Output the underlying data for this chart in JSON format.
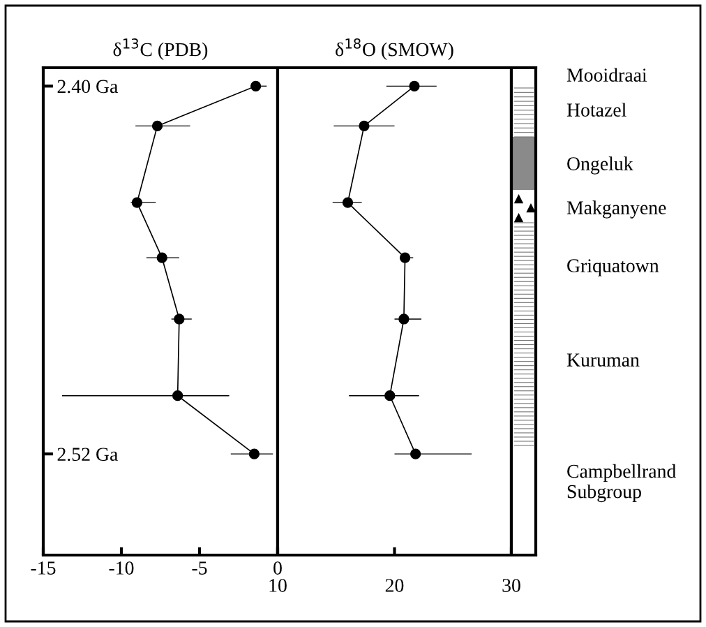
{
  "chart_data": [
    {
      "type": "line",
      "title": "δ$^{13}$C (PDB)",
      "marker": "circle",
      "line_style": "solid",
      "xlim": [
        -15,
        0
      ],
      "xticks": [
        -15,
        -10,
        -5,
        0
      ],
      "ylim": [
        2.553,
        2.394
      ],
      "yticks": [
        {
          "value": 2.4,
          "label": "2.40 Ga"
        },
        {
          "value": 2.52,
          "label": "2.52 Ga"
        }
      ],
      "series": [
        {
          "color": "#000000",
          "x": [
            -1.4,
            -7.7,
            -9.0,
            -7.4,
            -6.3,
            -6.4,
            -1.5
          ],
          "values": [
            2.4,
            2.413,
            2.438,
            2.456,
            2.476,
            2.501,
            2.52
          ],
          "xerrors": [
            [
              -1.6,
              -0.7
            ],
            [
              -9.1,
              -5.6
            ],
            [
              -9.4,
              -7.8
            ],
            [
              -8.4,
              -6.3
            ],
            [
              -6.8,
              -5.5
            ],
            [
              -13.8,
              -3.1
            ],
            [
              -3.0,
              -0.3
            ]
          ]
        }
      ]
    },
    {
      "type": "line",
      "title": "δ$^{18}$O (SMOW)",
      "marker": "circle",
      "line_style": "solid",
      "xlim": [
        10,
        30
      ],
      "xticks": [
        10,
        20,
        30
      ],
      "ylim": [
        2.553,
        2.394
      ],
      "tick_labels": "x",
      "series": [
        {
          "color": "#000000",
          "x": [
            21.7,
            17.4,
            16.0,
            20.9,
            20.8,
            19.6,
            21.8
          ],
          "values": [
            2.4,
            2.413,
            2.438,
            2.456,
            2.476,
            2.501,
            2.52
          ],
          "xerrors": [
            [
              19.3,
              23.6
            ],
            [
              14.8,
              20.0
            ],
            [
              14.7,
              17.2
            ],
            [
              20.6,
              21.6
            ],
            [
              20.0,
              22.3
            ],
            [
              16.1,
              22.1
            ],
            [
              20.0,
              26.6
            ]
          ]
        }
      ],
      "annotations": [
        "Mooidraai",
        "Hotazel",
        "Ongeluk",
        "Makganyene",
        "Griquatown",
        "Kuruman",
        "Campbellrand\nSubgroup"
      ]
    }
  ]
}
